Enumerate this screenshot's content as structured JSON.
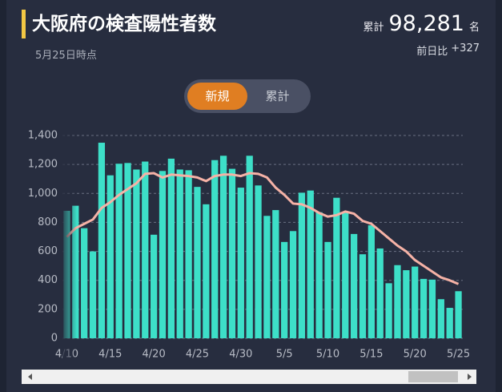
{
  "header": {
    "title": "大阪府の検査陽性者数",
    "as_of": "5月25日時点",
    "total_label": "累計",
    "total_value": "98,281",
    "total_unit": "名",
    "diff_label": "前日比",
    "diff_value": "+327"
  },
  "toggle": [
    "新規",
    "累計"
  ],
  "chart_data": {
    "type": "bar",
    "categories": [
      "4/10",
      null,
      null,
      null,
      null,
      "4/15",
      null,
      null,
      null,
      null,
      "4/20",
      null,
      null,
      null,
      null,
      "4/25",
      null,
      null,
      null,
      null,
      "4/30",
      null,
      null,
      null,
      null,
      "5/5",
      null,
      null,
      null,
      null,
      "5/10",
      null,
      null,
      null,
      null,
      "5/15",
      null,
      null,
      null,
      null,
      "5/20",
      null,
      null,
      null,
      null,
      "5/25"
    ],
    "series": [
      {
        "type": "bar",
        "color": "#3ddfc8",
        "values": [
          880,
          915,
          760,
          600,
          1350,
          1125,
          1205,
          1210,
          1165,
          1220,
          715,
          1155,
          1240,
          1165,
          1160,
          1045,
          925,
          1230,
          1260,
          1170,
          1040,
          1260,
          1055,
          845,
          885,
          665,
          740,
          1005,
          1020,
          870,
          665,
          970,
          870,
          720,
          580,
          780,
          620,
          380,
          505,
          470,
          495,
          410,
          405,
          270,
          210,
          325
        ]
      },
      {
        "type": "line",
        "color": "#f5b2a6",
        "values": [
          700,
          760,
          790,
          820,
          900,
          940,
          990,
          1030,
          1070,
          1135,
          1140,
          1110,
          1130,
          1125,
          1120,
          1110,
          1085,
          1120,
          1130,
          1130,
          1120,
          1140,
          1135,
          1110,
          1040,
          990,
          930,
          925,
          900,
          865,
          840,
          850,
          875,
          860,
          810,
          790,
          740,
          690,
          640,
          600,
          540,
          500,
          460,
          420,
          400,
          375
        ]
      }
    ],
    "ylim": [
      0,
      1400
    ],
    "yticks": [
      0,
      200,
      400,
      600,
      800,
      {
        "value": 1000,
        "label": "1,000"
      },
      {
        "value": 1200,
        "label": "1,200"
      },
      {
        "value": 1400,
        "label": "1,400"
      }
    ],
    "grid": true
  }
}
